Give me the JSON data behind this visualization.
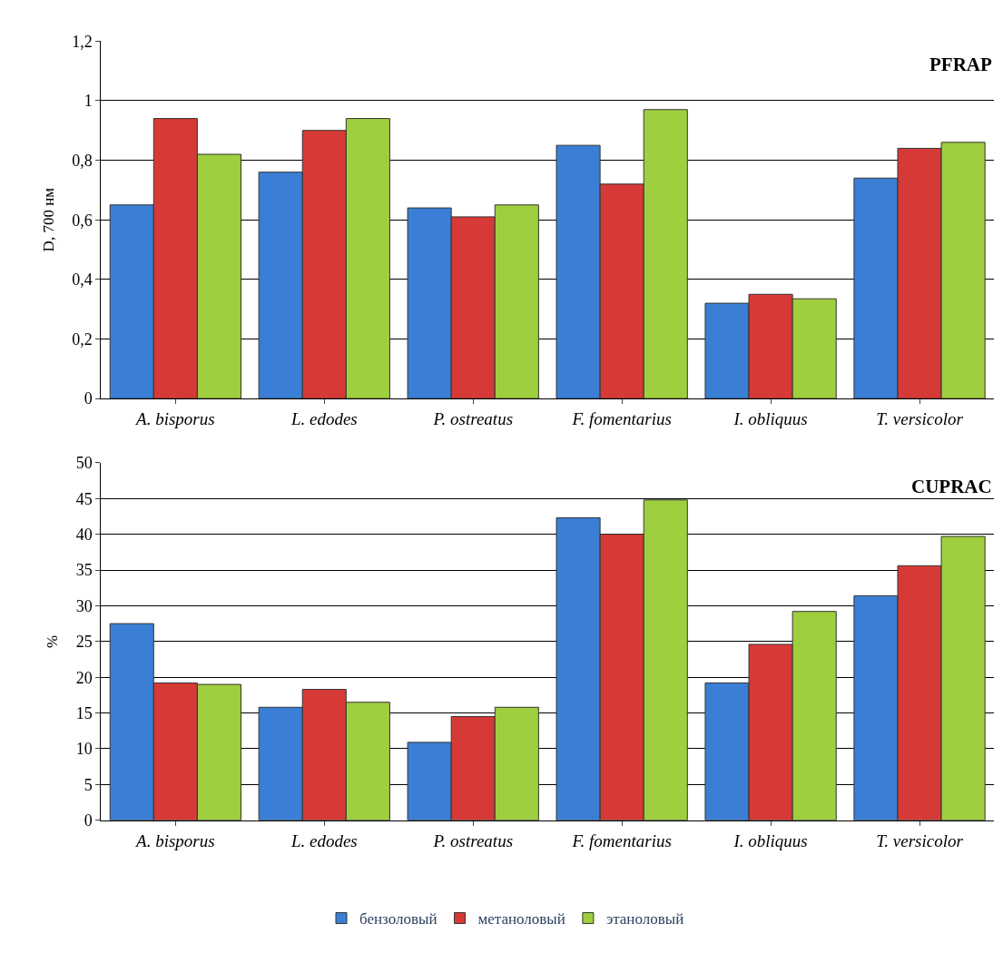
{
  "chart_data": [
    {
      "type": "bar",
      "title": "PFRAP",
      "ylabel": "D, 700 нм",
      "categories": [
        "A. bisporus",
        "L. edodes",
        "P. ostreatus",
        "F. fomentarius",
        "I. obliquus",
        "T. versicolor"
      ],
      "series": [
        {
          "color": "#3a7fd5",
          "values": [
            0.65,
            0.76,
            0.64,
            0.85,
            0.32,
            0.74
          ]
        },
        {
          "color": "#d63a36",
          "values": [
            0.94,
            0.9,
            0.61,
            0.72,
            0.35,
            0.84
          ]
        },
        {
          "color": "#9fcf3e",
          "values": [
            0.82,
            0.94,
            0.65,
            0.97,
            0.335,
            0.86
          ]
        }
      ],
      "ylim": [
        0,
        1.2
      ],
      "yticks": [
        0,
        {
          "value": 0.2,
          "label": "0,2"
        },
        {
          "value": 0.4,
          "label": "0,4"
        },
        {
          "value": 0.6,
          "label": "0,6"
        },
        {
          "value": 0.8,
          "label": "0,8"
        },
        1,
        {
          "value": 1.2,
          "label": "1,2"
        }
      ],
      "grid": "y",
      "legend": false
    },
    {
      "type": "bar",
      "title": "CUPRAC",
      "ylabel": "%",
      "categories": [
        "A. bisporus",
        "L. edodes",
        "P. ostreatus",
        "F. fomentarius",
        "I. obliquus",
        "T. versicolor"
      ],
      "series": [
        {
          "name": "бензоловый",
          "color": "#3a7fd5",
          "values": [
            27.5,
            15.8,
            10.9,
            42.3,
            19.2,
            31.4
          ]
        },
        {
          "name": "метаноловый",
          "color": "#d63a36",
          "values": [
            19.2,
            18.3,
            14.5,
            40.0,
            24.6,
            35.6
          ]
        },
        {
          "name": "этаноловый",
          "color": "#9fcf3e",
          "values": [
            19.0,
            16.5,
            15.8,
            44.8,
            29.2,
            39.7
          ]
        }
      ],
      "ylim": [
        0,
        50
      ],
      "yticks": [
        0,
        5,
        10,
        15,
        20,
        25,
        30,
        35,
        40,
        45,
        50
      ],
      "grid": "y",
      "legend": "bottom"
    }
  ]
}
